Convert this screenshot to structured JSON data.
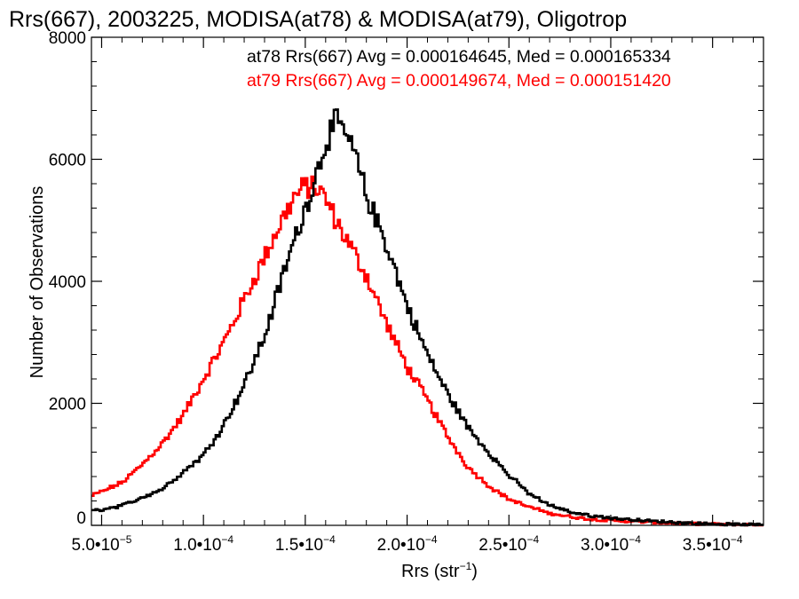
{
  "chart_data": {
    "type": "histogram",
    "title": "Rrs(667), 2003225, MODISA(at78) & MODISA(at79), Oligotrop",
    "xlabel_base": "Rrs (str",
    "xlabel_sup": "−1",
    "xlabel_close": ")",
    "ylabel": "Number of Observations",
    "xlim": [
      4.5e-05,
      0.000375
    ],
    "ylim": [
      0,
      8000
    ],
    "bin_width": 1e-06,
    "x_ticks": [
      {
        "value": 5e-05,
        "mant": "5.0•10",
        "exp": "−5"
      },
      {
        "value": 0.0001,
        "mant": "1.0•10",
        "exp": "−4"
      },
      {
        "value": 0.00015,
        "mant": "1.5•10",
        "exp": "−4"
      },
      {
        "value": 0.0002,
        "mant": "2.0•10",
        "exp": "−4"
      },
      {
        "value": 0.00025,
        "mant": "2.5•10",
        "exp": "−4"
      },
      {
        "value": 0.0003,
        "mant": "3.0•10",
        "exp": "−4"
      },
      {
        "value": 0.00035,
        "mant": "3.5•10",
        "exp": "−4"
      }
    ],
    "y_ticks": [
      {
        "value": 0,
        "label": "0"
      },
      {
        "value": 2000,
        "label": "2000"
      },
      {
        "value": 4000,
        "label": "4000"
      },
      {
        "value": 6000,
        "label": "6000"
      },
      {
        "value": 8000,
        "label": "8000"
      }
    ],
    "series": [
      {
        "name": "at78",
        "color": "#000000",
        "stats_text": "at78 Rrs(667) Avg = 0.000164645, Med = 0.000165334",
        "avg": 0.000164645,
        "median": 0.000165334,
        "points": [
          [
            4.5e-05,
            230
          ],
          [
            6e-05,
            320
          ],
          [
            8e-05,
            600
          ],
          [
            0.0001,
            1150
          ],
          [
            0.00011,
            1650
          ],
          [
            0.00012,
            2300
          ],
          [
            0.00013,
            3100
          ],
          [
            0.00014,
            4200
          ],
          [
            0.00015,
            5200
          ],
          [
            0.000155,
            5700
          ],
          [
            0.00016,
            6300
          ],
          [
            0.000165,
            6600
          ],
          [
            0.00017,
            6400
          ],
          [
            0.000175,
            6000
          ],
          [
            0.00018,
            5400
          ],
          [
            0.00019,
            4600
          ],
          [
            0.0002,
            3600
          ],
          [
            0.00021,
            2800
          ],
          [
            0.00022,
            2150
          ],
          [
            0.00023,
            1600
          ],
          [
            0.00024,
            1200
          ],
          [
            0.00025,
            820
          ],
          [
            0.00026,
            520
          ],
          [
            0.00027,
            330
          ],
          [
            0.00028,
            220
          ],
          [
            0.00029,
            160
          ],
          [
            0.0003,
            120
          ],
          [
            0.00032,
            70
          ],
          [
            0.00034,
            35
          ],
          [
            0.00036,
            15
          ],
          [
            0.000375,
            8
          ]
        ]
      },
      {
        "name": "at79",
        "color": "#ff0000",
        "stats_text": "at79 Rrs(667) Avg = 0.000149674, Med = 0.000151420",
        "avg": 0.000149674,
        "median": 0.00015142,
        "points": [
          [
            4.5e-05,
            480
          ],
          [
            6e-05,
            700
          ],
          [
            7e-05,
            1000
          ],
          [
            8e-05,
            1350
          ],
          [
            9e-05,
            1800
          ],
          [
            0.0001,
            2400
          ],
          [
            0.00011,
            3000
          ],
          [
            0.00012,
            3700
          ],
          [
            0.00013,
            4400
          ],
          [
            0.00014,
            5100
          ],
          [
            0.000145,
            5400
          ],
          [
            0.00015,
            5550
          ],
          [
            0.000155,
            5550
          ],
          [
            0.00016,
            5350
          ],
          [
            0.000165,
            5000
          ],
          [
            0.00017,
            4700
          ],
          [
            0.00018,
            4100
          ],
          [
            0.00019,
            3300
          ],
          [
            0.0002,
            2600
          ],
          [
            0.00021,
            2050
          ],
          [
            0.00022,
            1450
          ],
          [
            0.00023,
            950
          ],
          [
            0.00024,
            650
          ],
          [
            0.00025,
            430
          ],
          [
            0.00026,
            300
          ],
          [
            0.00027,
            200
          ],
          [
            0.00028,
            140
          ],
          [
            0.00029,
            100
          ],
          [
            0.0003,
            80
          ],
          [
            0.00032,
            50
          ],
          [
            0.00034,
            25
          ],
          [
            0.00036,
            12
          ],
          [
            0.000375,
            6
          ]
        ]
      }
    ]
  }
}
